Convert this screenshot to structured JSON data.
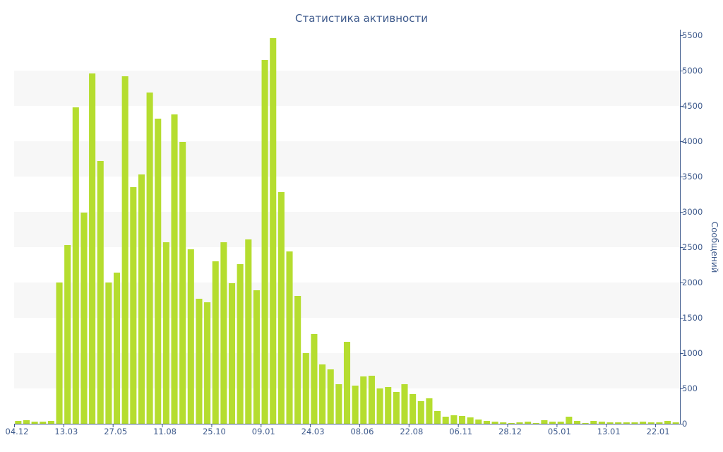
{
  "chart_data": {
    "type": "bar",
    "title": "Статистика активности",
    "ylabel": "Сообщений",
    "xlabel": "",
    "ylim": [
      0,
      5500
    ],
    "yticks": [
      0,
      500,
      1000,
      1500,
      2000,
      2500,
      3000,
      3500,
      4000,
      4500,
      5000,
      5500
    ],
    "x_tick_labels": [
      {
        "index": 0,
        "label": "04.12"
      },
      {
        "index": 6,
        "label": "13.03"
      },
      {
        "index": 12,
        "label": "27.05"
      },
      {
        "index": 18,
        "label": "11.08"
      },
      {
        "index": 24,
        "label": "25.10"
      },
      {
        "index": 30,
        "label": "09.01"
      },
      {
        "index": 36,
        "label": "24.03"
      },
      {
        "index": 42,
        "label": "08.06"
      },
      {
        "index": 48,
        "label": "22.08"
      },
      {
        "index": 54,
        "label": "06.11"
      },
      {
        "index": 60,
        "label": "28.12"
      },
      {
        "index": 66,
        "label": "05.01"
      },
      {
        "index": 72,
        "label": "13.01"
      },
      {
        "index": 78,
        "label": "22.01"
      }
    ],
    "values": [
      40,
      50,
      30,
      30,
      40,
      2000,
      2530,
      4480,
      2990,
      4960,
      3720,
      2000,
      2140,
      4920,
      3350,
      3530,
      4690,
      4320,
      2570,
      4380,
      3990,
      2470,
      1770,
      1720,
      2300,
      2570,
      1990,
      2260,
      2610,
      1890,
      5150,
      5460,
      3280,
      2440,
      1810,
      1000,
      1270,
      840,
      770,
      560,
      1160,
      540,
      670,
      680,
      500,
      520,
      450,
      560,
      420,
      320,
      360,
      180,
      100,
      120,
      110,
      90,
      60,
      40,
      30,
      20,
      10,
      20,
      30,
      10,
      50,
      30,
      30,
      100,
      40,
      10,
      40,
      30,
      20,
      20,
      20,
      20,
      30,
      20,
      20,
      40,
      20
    ],
    "bar_color": "#b5dd2f",
    "band_color": "#f7f7f7",
    "text_color": "#3e5a8c",
    "y_axis_side": "right",
    "grid": "alternating horizontal bands"
  }
}
